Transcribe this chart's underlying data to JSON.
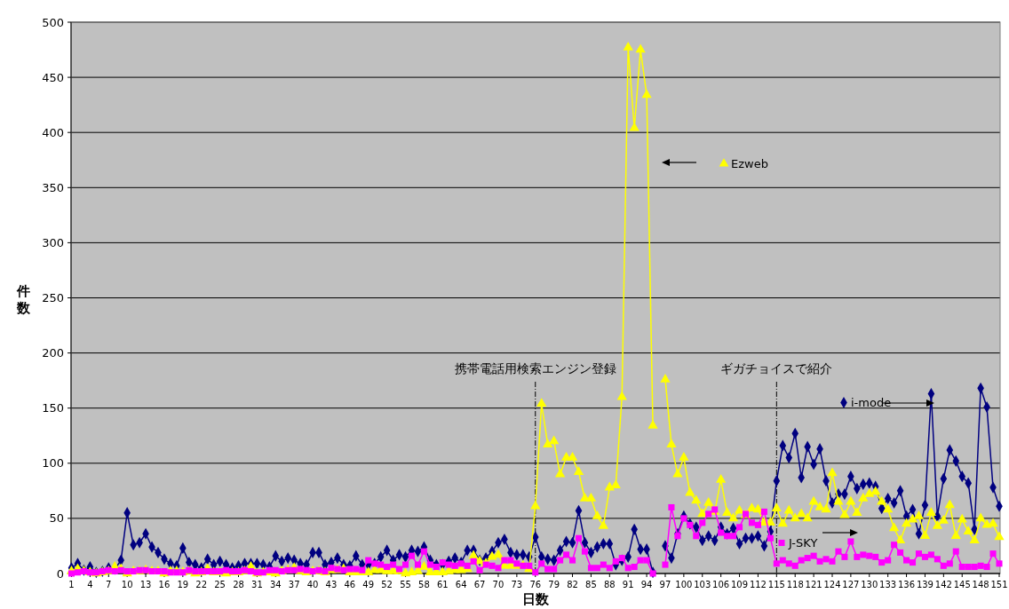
{
  "chart_data": {
    "type": "line",
    "xlabel": "日数",
    "ylabel": "件数",
    "x": [
      1,
      2,
      3,
      4,
      5,
      6,
      7,
      8,
      9,
      10,
      11,
      12,
      13,
      14,
      15,
      16,
      17,
      18,
      19,
      20,
      21,
      22,
      23,
      24,
      25,
      26,
      27,
      28,
      29,
      30,
      31,
      32,
      33,
      34,
      35,
      36,
      37,
      38,
      39,
      40,
      41,
      42,
      43,
      44,
      45,
      46,
      47,
      48,
      49,
      50,
      51,
      52,
      53,
      54,
      55,
      56,
      57,
      58,
      59,
      60,
      61,
      62,
      63,
      64,
      65,
      66,
      67,
      68,
      69,
      70,
      71,
      72,
      73,
      74,
      75,
      76,
      77,
      78,
      79,
      80,
      81,
      82,
      83,
      84,
      85,
      86,
      87,
      88,
      89,
      90,
      91,
      92,
      93,
      94,
      95,
      96,
      97,
      98,
      99,
      100,
      101,
      102,
      103,
      104,
      105,
      106,
      107,
      108,
      109,
      110,
      111,
      112,
      113,
      114,
      115,
      116,
      117,
      118,
      119,
      120,
      121,
      122,
      123,
      124,
      125,
      126,
      127,
      128,
      129,
      130,
      131,
      132,
      133,
      134,
      135,
      136,
      137,
      138,
      139,
      140,
      141,
      142,
      143,
      144,
      145,
      146,
      147,
      148,
      149,
      150,
      151
    ],
    "xlim": [
      1,
      151
    ],
    "xticks": [
      1,
      4,
      7,
      10,
      13,
      16,
      19,
      22,
      25,
      28,
      31,
      34,
      37,
      40,
      43,
      46,
      49,
      52,
      55,
      58,
      61,
      64,
      67,
      70,
      73,
      76,
      79,
      82,
      85,
      88,
      91,
      94,
      97,
      100,
      103,
      106,
      109,
      112,
      115,
      118,
      121,
      124,
      127,
      130,
      133,
      136,
      139,
      142,
      145,
      148,
      151
    ],
    "ylim": [
      0,
      500
    ],
    "yticks": [
      0,
      50,
      100,
      150,
      200,
      250,
      300,
      350,
      400,
      450,
      500
    ],
    "grid": "y",
    "legend": "right",
    "series": [
      {
        "name": "i-mode",
        "color": "#000080",
        "marker": "diamond",
        "values": [
          5,
          9,
          3,
          6,
          1,
          2,
          5,
          4,
          12,
          55,
          26,
          28,
          36,
          24,
          19,
          13,
          9,
          7,
          23,
          10,
          8,
          5,
          13,
          8,
          11,
          8,
          5,
          7,
          9,
          9,
          9,
          8,
          6,
          16,
          11,
          14,
          12,
          9,
          8,
          19,
          19,
          8,
          10,
          14,
          8,
          7,
          16,
          8,
          8,
          9,
          15,
          21,
          12,
          17,
          15,
          21,
          20,
          24,
          12,
          8,
          8,
          11,
          14,
          10,
          21,
          21,
          12,
          14,
          20,
          28,
          31,
          19,
          17,
          17,
          15,
          33,
          15,
          13,
          12,
          21,
          29,
          28,
          57,
          28,
          19,
          24,
          27,
          27,
          8,
          12,
          15,
          40,
          22,
          22,
          1,
          null,
          25,
          14,
          36,
          52,
          45,
          42,
          30,
          34,
          30,
          42,
          36,
          41,
          27,
          32,
          32,
          34,
          25,
          38,
          84,
          116,
          105,
          127,
          87,
          115,
          99,
          113,
          84,
          64,
          72,
          72,
          88,
          77,
          81,
          82,
          79,
          59,
          68,
          64,
          75,
          52,
          58,
          36,
          62,
          163,
          52,
          86,
          112,
          102,
          88,
          82,
          40,
          168,
          151,
          78,
          61
        ]
      },
      {
        "name": "Ezweb",
        "color": "#ffff00",
        "marker": "triangle",
        "values": [
          2,
          4,
          2,
          1,
          0,
          1,
          2,
          6,
          4,
          0,
          2,
          2,
          3,
          2,
          2,
          0,
          2,
          2,
          1,
          2,
          0,
          1,
          4,
          1,
          1,
          0,
          1,
          1,
          2,
          6,
          0,
          1,
          1,
          0,
          2,
          3,
          5,
          2,
          1,
          2,
          2,
          1,
          3,
          3,
          4,
          1,
          1,
          1,
          1,
          3,
          3,
          2,
          2,
          2,
          0,
          1,
          2,
          6,
          1,
          1,
          1,
          2,
          3,
          3,
          4,
          16,
          11,
          9,
          15,
          17,
          7,
          7,
          7,
          7,
          4,
          61,
          154,
          117,
          120,
          90,
          105,
          105,
          92,
          68,
          68,
          52,
          43,
          78,
          80,
          160,
          477,
          404,
          475,
          434,
          134,
          null,
          176,
          117,
          90,
          105,
          73,
          66,
          54,
          64,
          56,
          85,
          55,
          50,
          57,
          53,
          59,
          58,
          46,
          46,
          59,
          45,
          57,
          50,
          54,
          50,
          65,
          60,
          58,
          91,
          65,
          53,
          65,
          55,
          68,
          72,
          74,
          65,
          58,
          41,
          30,
          45,
          49,
          52,
          34,
          55,
          43,
          48,
          62,
          34,
          49,
          38,
          30,
          50,
          44,
          45,
          33
        ]
      },
      {
        "name": "J-SKY",
        "color": "#ff00ff",
        "marker": "square",
        "values": [
          0,
          1,
          2,
          1,
          1,
          2,
          3,
          2,
          3,
          2,
          2,
          3,
          3,
          2,
          2,
          2,
          1,
          1,
          1,
          3,
          2,
          2,
          2,
          2,
          2,
          3,
          2,
          2,
          3,
          2,
          1,
          1,
          3,
          3,
          2,
          3,
          3,
          4,
          3,
          2,
          3,
          2,
          5,
          4,
          3,
          4,
          4,
          3,
          12,
          9,
          8,
          6,
          8,
          4,
          8,
          16,
          8,
          20,
          8,
          6,
          10,
          8,
          7,
          9,
          7,
          11,
          3,
          8,
          7,
          5,
          12,
          12,
          9,
          7,
          7,
          1,
          9,
          4,
          4,
          12,
          17,
          12,
          32,
          20,
          5,
          5,
          8,
          5,
          11,
          14,
          5,
          6,
          12,
          12,
          0,
          null,
          8,
          60,
          34,
          50,
          44,
          34,
          46,
          54,
          58,
          37,
          34,
          34,
          42,
          54,
          46,
          44,
          56,
          32,
          9,
          12,
          9,
          7,
          12,
          14,
          16,
          11,
          13,
          11,
          20,
          15,
          29,
          15,
          17,
          16,
          15,
          10,
          12,
          26,
          19,
          12,
          10,
          18,
          15,
          17,
          13,
          7,
          9,
          20,
          6,
          6,
          6,
          7,
          6,
          18,
          9
        ]
      }
    ],
    "ref_lines": [
      {
        "axis": "x",
        "value": 76,
        "label": "携帯電話用検索エンジン登録",
        "color": "#000000",
        "line_style": "dashed"
      },
      {
        "axis": "x",
        "value": 115,
        "label": "ギガチョイスで紹介",
        "color": "#000000",
        "line_style": "dashed"
      }
    ]
  }
}
